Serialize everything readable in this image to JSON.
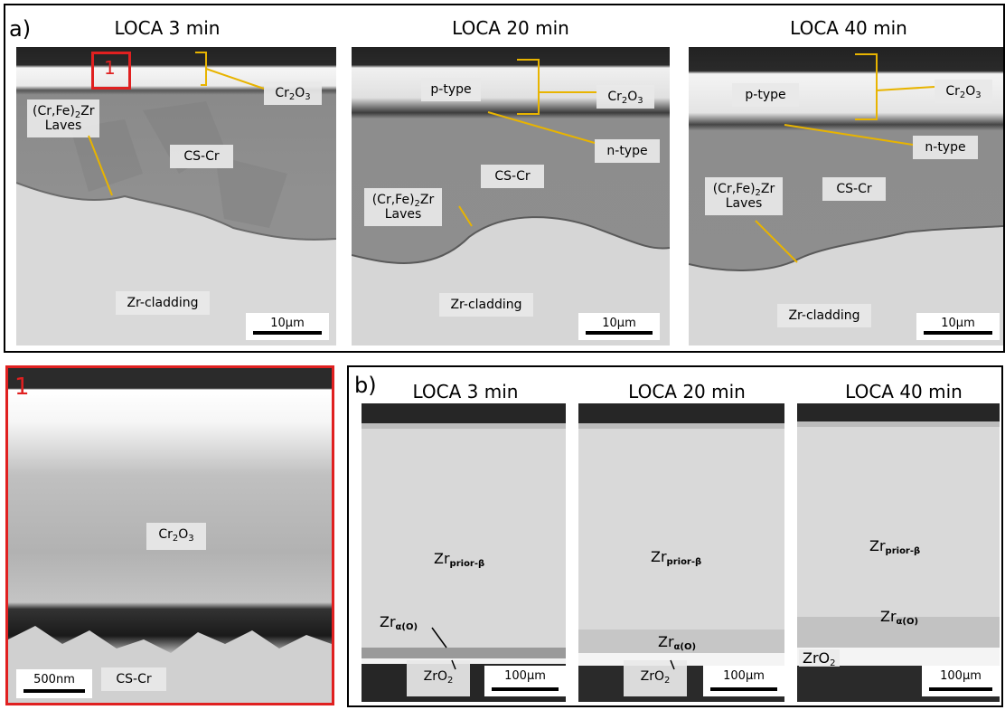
{
  "panel_a": {
    "label": "a)",
    "columns": [
      {
        "title": "LOCA 3 min",
        "scale": "10μm",
        "labels": {
          "oxide_base": "Cr",
          "oxide_sub1": "2",
          "oxide_mid": "O",
          "oxide_sub2": "3",
          "laves_a": "(Cr,Fe)",
          "laves_sub": "2",
          "laves_b": "Zr",
          "laves_c": "Laves",
          "cs_cr": "CS-Cr",
          "cladding": "Zr-cladding"
        },
        "marker": "1"
      },
      {
        "title": "LOCA 20 min",
        "scale": "10μm",
        "labels": {
          "p_type": "p-type",
          "oxide_base": "Cr",
          "oxide_sub1": "2",
          "oxide_mid": "O",
          "oxide_sub2": "3",
          "n_type": "n-type",
          "cs_cr": "CS-Cr",
          "laves_a": "(Cr,Fe)",
          "laves_sub": "2",
          "laves_b": "Zr",
          "laves_c": "Laves",
          "cladding": "Zr-cladding"
        }
      },
      {
        "title": "LOCA 40 min",
        "scale": "10μm",
        "labels": {
          "p_type": "p-type",
          "oxide_base": "Cr",
          "oxide_sub1": "2",
          "oxide_mid": "O",
          "oxide_sub2": "3",
          "n_type": "n-type",
          "cs_cr": "CS-Cr",
          "laves_a": "(Cr,Fe)",
          "laves_sub": "2",
          "laves_b": "Zr",
          "laves_c": "Laves",
          "cladding": "Zr-cladding"
        }
      }
    ]
  },
  "inset": {
    "label": "1",
    "oxide_base": "Cr",
    "oxide_sub1": "2",
    "oxide_mid": "O",
    "oxide_sub2": "3",
    "cs_cr": "CS-Cr",
    "scale": "500nm"
  },
  "panel_b": {
    "label": "b)",
    "columns": [
      {
        "title": "LOCA 3 min",
        "scale": "100μm",
        "prior_base": "Zr",
        "prior_sub": "prior-β",
        "alpha_base": "Zr",
        "alpha_sub": "α(O)",
        "zro2_base": "ZrO",
        "zro2_sub": "2"
      },
      {
        "title": "LOCA 20 min",
        "scale": "100μm",
        "prior_base": "Zr",
        "prior_sub": "prior-β",
        "alpha_base": "Zr",
        "alpha_sub": "α(O)",
        "zro2_base": "ZrO",
        "zro2_sub": "2"
      },
      {
        "title": "LOCA 40 min",
        "scale": "100μm",
        "prior_base": "Zr",
        "prior_sub": "prior-β",
        "alpha_base": "Zr",
        "alpha_sub": "α(O)",
        "zro2_base": "ZrO",
        "zro2_sub": "2"
      }
    ]
  },
  "colors": {
    "marker": "#e02020",
    "leader": "#e8b400",
    "frame": "#000000"
  }
}
